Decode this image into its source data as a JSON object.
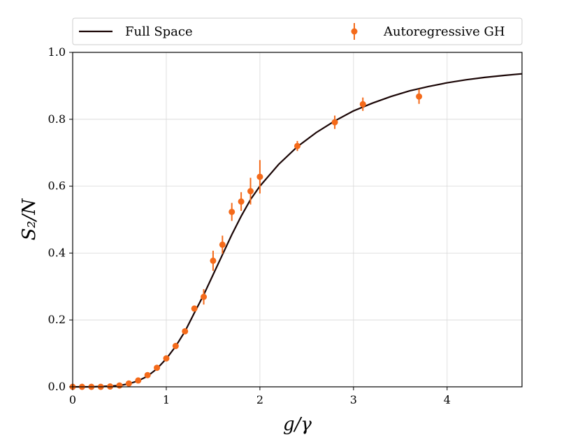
{
  "chart_data": {
    "type": "line",
    "xlabel": "g/γ",
    "ylabel": "S₂/N",
    "xlim": [
      0,
      4.8
    ],
    "ylim": [
      0.0,
      1.0
    ],
    "xticks": [
      0,
      1,
      2,
      3,
      4
    ],
    "yticks": [
      0.0,
      0.2,
      0.4,
      0.6,
      0.8,
      1.0
    ],
    "ytick_labels": [
      "0.0",
      "0.2",
      "0.4",
      "0.6",
      "0.8",
      "1.0"
    ],
    "grid": true,
    "legend_placement": "top, outside above axes",
    "series": [
      {
        "name": "Full Space",
        "kind": "line",
        "color": "#1a0505",
        "x": [
          0,
          0.2,
          0.4,
          0.5,
          0.6,
          0.7,
          0.8,
          0.9,
          1.0,
          1.1,
          1.2,
          1.3,
          1.4,
          1.5,
          1.6,
          1.7,
          1.8,
          1.9,
          2.0,
          2.2,
          2.4,
          2.6,
          2.8,
          3.0,
          3.2,
          3.4,
          3.6,
          3.8,
          4.0,
          4.2,
          4.4,
          4.6,
          4.8
        ],
        "y": [
          0.0,
          0.0,
          0.002,
          0.004,
          0.009,
          0.018,
          0.032,
          0.054,
          0.084,
          0.121,
          0.166,
          0.221,
          0.275,
          0.335,
          0.395,
          0.455,
          0.51,
          0.56,
          0.6,
          0.665,
          0.718,
          0.76,
          0.795,
          0.825,
          0.848,
          0.868,
          0.885,
          0.898,
          0.909,
          0.918,
          0.925,
          0.931,
          0.936
        ]
      },
      {
        "name": "Autoregressive GH",
        "kind": "errorbar",
        "color": "#f46a1a",
        "x": [
          0.0,
          0.1,
          0.2,
          0.3,
          0.4,
          0.5,
          0.6,
          0.7,
          0.8,
          0.9,
          1.0,
          1.1,
          1.2,
          1.3,
          1.4,
          1.5,
          1.6,
          1.7,
          1.8,
          1.9,
          2.0,
          2.4,
          2.8,
          3.1,
          3.7
        ],
        "y": [
          0.0,
          0.0,
          0.0,
          0.0,
          0.001,
          0.004,
          0.01,
          0.019,
          0.035,
          0.057,
          0.085,
          0.122,
          0.166,
          0.234,
          0.269,
          0.377,
          0.425,
          0.523,
          0.554,
          0.585,
          0.628,
          0.72,
          0.791,
          0.845,
          0.868
        ],
        "yerr": [
          0.0,
          0.0,
          0.0,
          0.0,
          0.0,
          0.0,
          0.0,
          0.0,
          0.0,
          0.0,
          0.0,
          0.0,
          0.006,
          0.005,
          0.023,
          0.03,
          0.027,
          0.027,
          0.028,
          0.04,
          0.05,
          0.015,
          0.02,
          0.02,
          0.022
        ]
      }
    ]
  }
}
